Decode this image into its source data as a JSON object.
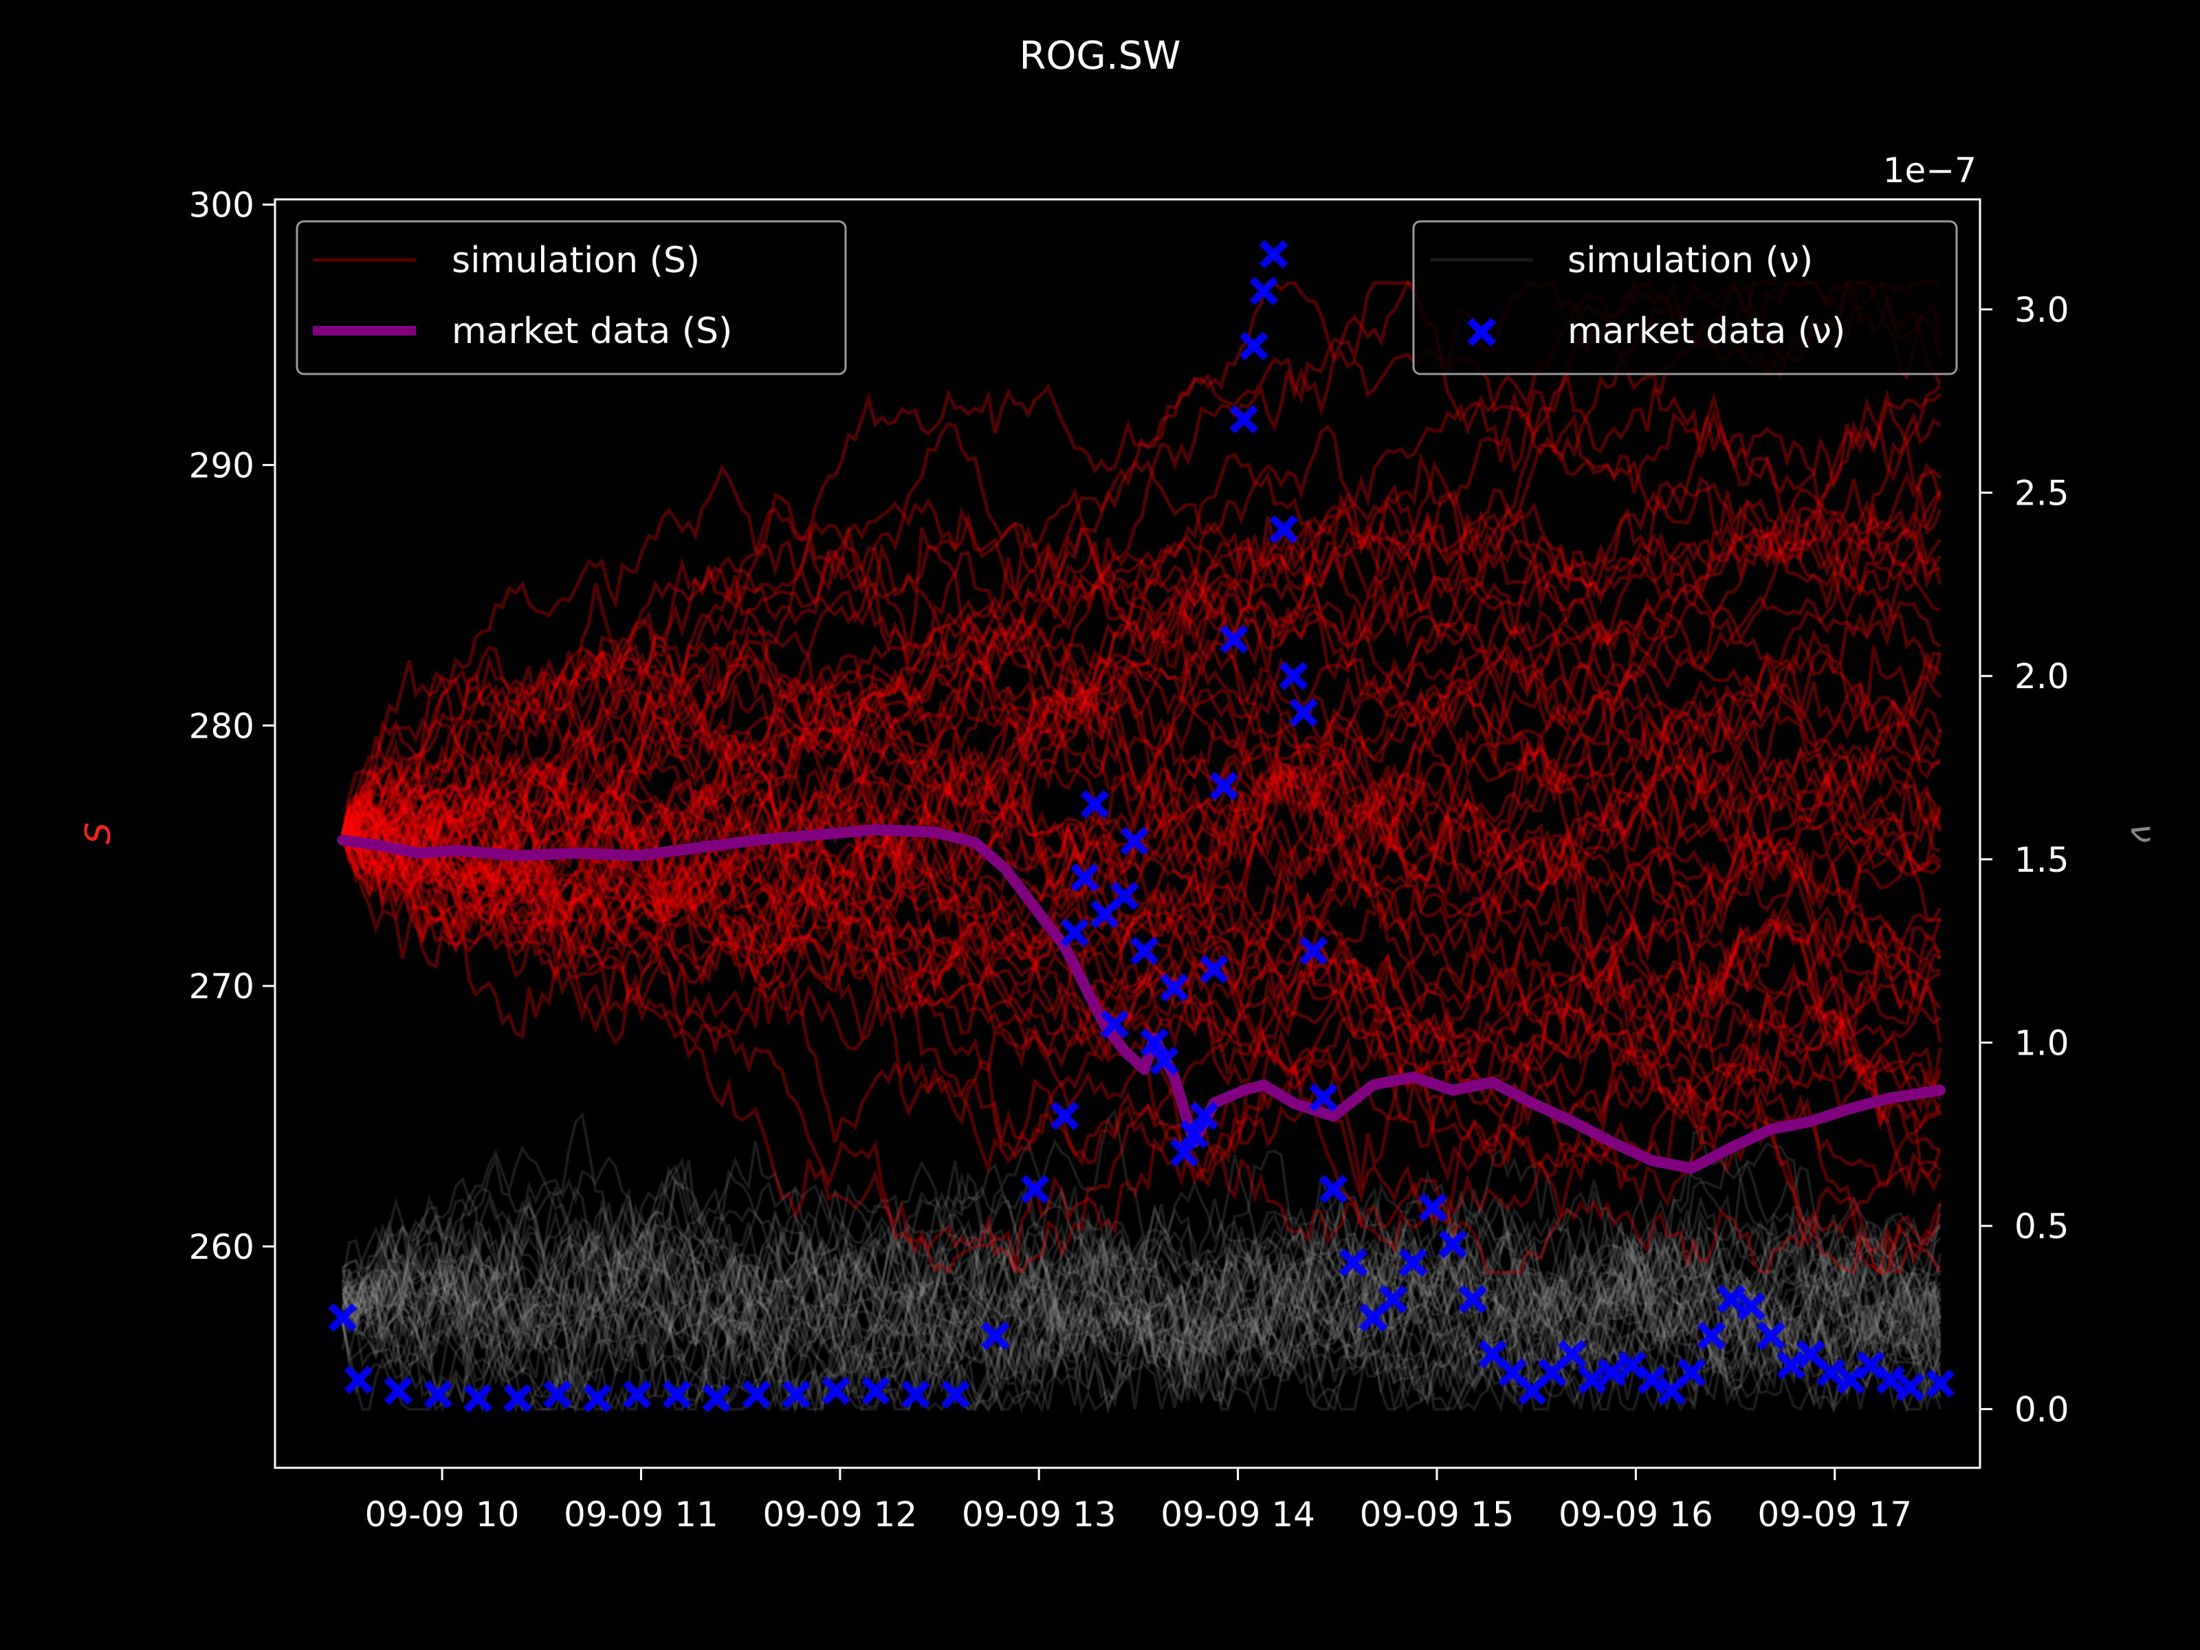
{
  "chart_data": {
    "type": "line",
    "title": "ROG.SW",
    "left_axis": {
      "label": "S",
      "label_color": "#ff2020",
      "ylim": [
        251.5,
        300.2
      ],
      "ticks": [
        260,
        270,
        280,
        290,
        300
      ],
      "tick_labels": [
        "260",
        "270",
        "280",
        "290",
        "300"
      ]
    },
    "right_axis": {
      "label": "ν",
      "label_color": "#888888",
      "ylim": [
        -0.16,
        3.3
      ],
      "ticks": [
        0.0,
        0.5,
        1.0,
        1.5,
        2.0,
        2.5,
        3.0
      ],
      "tick_labels": [
        "0.0",
        "0.5",
        "1.0",
        "1.5",
        "2.0",
        "2.5",
        "3.0"
      ],
      "offset_text": "1e−7"
    },
    "x_axis": {
      "xlim": [
        8.58,
        17.15
      ],
      "ticks": [
        9.42,
        10.42,
        11.42,
        12.42,
        13.42,
        14.42,
        15.42,
        16.42
      ],
      "tick_labels": [
        "09-09 10",
        "09-09 11",
        "09-09 12",
        "09-09 13",
        "09-09 14",
        "09-09 15",
        "09-09 16",
        "09-09 17"
      ],
      "data_start": 8.92,
      "data_end": 16.95
    },
    "legend_left": {
      "location": "upper left",
      "entries": [
        {
          "label": "simulation (S)",
          "color": "#5a0000",
          "style": "thin-line"
        },
        {
          "label": "market data (S)",
          "color": "#800080",
          "style": "thick-line"
        }
      ]
    },
    "legend_right": {
      "location": "upper right",
      "entries": [
        {
          "label": "simulation (ν)",
          "color": "#1a1a1a",
          "style": "thin-line"
        },
        {
          "label": "market data (ν)",
          "color": "#0000ff",
          "style": "x-marker"
        }
      ]
    },
    "simulation_S": {
      "paths": 60,
      "color": "#ff0000",
      "start_value": 275.8,
      "end_range": [
        259,
        297
      ]
    },
    "simulation_nu": {
      "paths": 40,
      "color": "#9a9a9a",
      "range": [
        0.0,
        0.85
      ]
    },
    "market_S": {
      "color": "#800080",
      "x": [
        8.92,
        9.1,
        9.3,
        9.5,
        9.8,
        10.1,
        10.4,
        10.7,
        11.0,
        11.3,
        11.6,
        11.9,
        12.1,
        12.25,
        12.4,
        12.55,
        12.65,
        12.75,
        12.85,
        12.95,
        13.0,
        13.1,
        13.2,
        13.3,
        13.45,
        13.55,
        13.7,
        13.9,
        14.1,
        14.3,
        14.5,
        14.7,
        14.9,
        15.1,
        15.3,
        15.5,
        15.7,
        15.9,
        16.1,
        16.3,
        16.5,
        16.7,
        16.95
      ],
      "values": [
        275.6,
        275.4,
        275.1,
        275.2,
        275.0,
        275.1,
        275.0,
        275.3,
        275.6,
        275.8,
        276.0,
        275.9,
        275.5,
        274.5,
        273.0,
        271.5,
        270.0,
        268.5,
        267.5,
        266.8,
        268.0,
        266.5,
        264.0,
        265.5,
        266.0,
        266.2,
        265.5,
        265.0,
        266.2,
        266.5,
        266.0,
        266.3,
        265.5,
        264.8,
        264.0,
        263.3,
        263.0,
        263.8,
        264.5,
        264.8,
        265.3,
        265.7,
        266.0
      ]
    },
    "market_nu": {
      "color": "#0000ff",
      "x": [
        8.92,
        9.0,
        9.2,
        9.4,
        9.6,
        9.8,
        10.0,
        10.2,
        10.4,
        10.6,
        10.8,
        11.0,
        11.2,
        11.4,
        11.6,
        11.8,
        12.0,
        12.2,
        12.4,
        12.55,
        12.6,
        12.65,
        12.7,
        12.75,
        12.8,
        12.85,
        12.9,
        12.95,
        13.0,
        13.05,
        13.1,
        13.15,
        13.2,
        13.25,
        13.3,
        13.35,
        13.4,
        13.45,
        13.5,
        13.55,
        13.6,
        13.65,
        13.7,
        13.75,
        13.8,
        13.85,
        13.9,
        14.0,
        14.1,
        14.2,
        14.3,
        14.4,
        14.5,
        14.6,
        14.7,
        14.8,
        14.9,
        15.0,
        15.1,
        15.2,
        15.3,
        15.4,
        15.5,
        15.6,
        15.7,
        15.8,
        15.9,
        16.0,
        16.1,
        16.2,
        16.3,
        16.4,
        16.5,
        16.6,
        16.7,
        16.8,
        16.95
      ],
      "values": [
        0.25,
        0.08,
        0.05,
        0.04,
        0.03,
        0.03,
        0.04,
        0.03,
        0.04,
        0.04,
        0.03,
        0.04,
        0.04,
        0.05,
        0.05,
        0.04,
        0.04,
        0.2,
        0.6,
        0.8,
        1.3,
        1.45,
        1.65,
        1.35,
        1.05,
        1.4,
        1.55,
        1.25,
        1.0,
        0.95,
        1.15,
        0.7,
        0.75,
        0.8,
        1.2,
        1.7,
        2.1,
        2.7,
        2.9,
        3.05,
        3.15,
        2.4,
        2.0,
        1.9,
        1.25,
        0.85,
        0.6,
        0.4,
        0.25,
        0.3,
        0.4,
        0.55,
        0.45,
        0.3,
        0.15,
        0.1,
        0.05,
        0.1,
        0.15,
        0.08,
        0.1,
        0.12,
        0.08,
        0.05,
        0.1,
        0.2,
        0.3,
        0.28,
        0.2,
        0.12,
        0.15,
        0.1,
        0.08,
        0.12,
        0.08,
        0.06,
        0.07
      ]
    }
  }
}
